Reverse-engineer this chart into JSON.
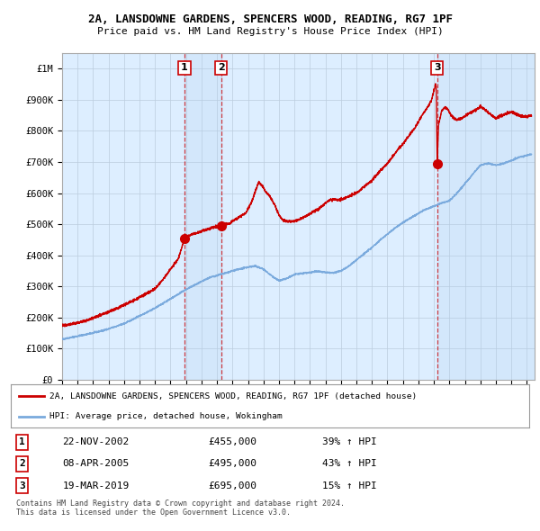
{
  "title": "2A, LANSDOWNE GARDENS, SPENCERS WOOD, READING, RG7 1PF",
  "subtitle": "Price paid vs. HM Land Registry's House Price Index (HPI)",
  "footer": "Contains HM Land Registry data © Crown copyright and database right 2024.\nThis data is licensed under the Open Government Licence v3.0.",
  "legend_line1": "2A, LANSDOWNE GARDENS, SPENCERS WOOD, READING, RG7 1PF (detached house)",
  "legend_line2": "HPI: Average price, detached house, Wokingham",
  "sales": [
    {
      "num": 1,
      "date": "22-NOV-2002",
      "price": 455000,
      "hpi_pct": "39%",
      "date_x": 2002.9
    },
    {
      "num": 2,
      "date": "08-APR-2005",
      "price": 495000,
      "hpi_pct": "43%",
      "date_x": 2005.27
    },
    {
      "num": 3,
      "date": "19-MAR-2019",
      "price": 695000,
      "hpi_pct": "15%",
      "date_x": 2019.21
    }
  ],
  "red_color": "#cc0000",
  "blue_color": "#7aaadd",
  "bg_color": "#ddeeff",
  "grid_color": "#bbccdd",
  "xlim": [
    1995,
    2025.5
  ],
  "ylim": [
    0,
    1050000
  ],
  "yticks": [
    0,
    100000,
    200000,
    300000,
    400000,
    500000,
    600000,
    700000,
    800000,
    900000,
    1000000
  ],
  "ytick_labels": [
    "£0",
    "£100K",
    "£200K",
    "£300K",
    "£400K",
    "£500K",
    "£600K",
    "£700K",
    "£800K",
    "£900K",
    "£1M"
  ],
  "xticks": [
    1995,
    1996,
    1997,
    1998,
    1999,
    2000,
    2001,
    2002,
    2003,
    2004,
    2005,
    2006,
    2007,
    2008,
    2009,
    2010,
    2011,
    2012,
    2013,
    2014,
    2015,
    2016,
    2017,
    2018,
    2019,
    2020,
    2021,
    2022,
    2023,
    2024,
    2025
  ],
  "hpi_anchors": [
    [
      1995.0,
      130000
    ],
    [
      1996.0,
      140000
    ],
    [
      1997.0,
      150000
    ],
    [
      1998.0,
      163000
    ],
    [
      1999.0,
      180000
    ],
    [
      2000.0,
      205000
    ],
    [
      2001.0,
      230000
    ],
    [
      2002.0,
      260000
    ],
    [
      2003.0,
      290000
    ],
    [
      2004.0,
      315000
    ],
    [
      2004.5,
      328000
    ],
    [
      2005.0,
      335000
    ],
    [
      2005.5,
      342000
    ],
    [
      2006.0,
      350000
    ],
    [
      2007.0,
      362000
    ],
    [
      2007.5,
      365000
    ],
    [
      2008.0,
      355000
    ],
    [
      2008.5,
      335000
    ],
    [
      2009.0,
      318000
    ],
    [
      2009.5,
      325000
    ],
    [
      2010.0,
      338000
    ],
    [
      2010.5,
      342000
    ],
    [
      2011.0,
      345000
    ],
    [
      2011.5,
      348000
    ],
    [
      2012.0,
      345000
    ],
    [
      2012.5,
      343000
    ],
    [
      2013.0,
      350000
    ],
    [
      2013.5,
      365000
    ],
    [
      2014.0,
      385000
    ],
    [
      2014.5,
      405000
    ],
    [
      2015.0,
      425000
    ],
    [
      2015.5,
      448000
    ],
    [
      2016.0,
      468000
    ],
    [
      2016.5,
      488000
    ],
    [
      2017.0,
      505000
    ],
    [
      2017.5,
      520000
    ],
    [
      2018.0,
      535000
    ],
    [
      2018.5,
      548000
    ],
    [
      2019.0,
      558000
    ],
    [
      2019.5,
      568000
    ],
    [
      2020.0,
      575000
    ],
    [
      2020.5,
      600000
    ],
    [
      2021.0,
      630000
    ],
    [
      2021.5,
      660000
    ],
    [
      2022.0,
      690000
    ],
    [
      2022.5,
      695000
    ],
    [
      2023.0,
      690000
    ],
    [
      2023.5,
      695000
    ],
    [
      2024.0,
      705000
    ],
    [
      2024.5,
      715000
    ],
    [
      2025.3,
      725000
    ]
  ],
  "price_anchors": [
    [
      1995.0,
      175000
    ],
    [
      1995.5,
      178000
    ],
    [
      1996.0,
      183000
    ],
    [
      1996.5,
      190000
    ],
    [
      1997.0,
      198000
    ],
    [
      1997.5,
      208000
    ],
    [
      1998.0,
      218000
    ],
    [
      1998.5,
      228000
    ],
    [
      1999.0,
      240000
    ],
    [
      1999.5,
      252000
    ],
    [
      2000.0,
      265000
    ],
    [
      2000.5,
      278000
    ],
    [
      2001.0,
      292000
    ],
    [
      2001.3,
      310000
    ],
    [
      2001.6,
      328000
    ],
    [
      2001.9,
      348000
    ],
    [
      2002.2,
      368000
    ],
    [
      2002.5,
      390000
    ],
    [
      2002.7,
      420000
    ],
    [
      2002.9,
      455000
    ],
    [
      2003.1,
      462000
    ],
    [
      2003.4,
      468000
    ],
    [
      2003.7,
      472000
    ],
    [
      2004.0,
      478000
    ],
    [
      2004.3,
      482000
    ],
    [
      2004.6,
      487000
    ],
    [
      2004.9,
      491000
    ],
    [
      2005.27,
      495000
    ],
    [
      2005.5,
      498000
    ],
    [
      2005.8,
      502000
    ],
    [
      2006.0,
      510000
    ],
    [
      2006.3,
      518000
    ],
    [
      2006.6,
      528000
    ],
    [
      2006.9,
      538000
    ],
    [
      2007.1,
      560000
    ],
    [
      2007.3,
      580000
    ],
    [
      2007.5,
      610000
    ],
    [
      2007.7,
      635000
    ],
    [
      2007.9,
      625000
    ],
    [
      2008.1,
      608000
    ],
    [
      2008.4,
      590000
    ],
    [
      2008.7,
      565000
    ],
    [
      2009.0,
      530000
    ],
    [
      2009.2,
      515000
    ],
    [
      2009.5,
      510000
    ],
    [
      2009.8,
      508000
    ],
    [
      2010.0,
      510000
    ],
    [
      2010.3,
      515000
    ],
    [
      2010.6,
      522000
    ],
    [
      2010.9,
      530000
    ],
    [
      2011.2,
      540000
    ],
    [
      2011.5,
      548000
    ],
    [
      2011.8,
      558000
    ],
    [
      2012.0,
      568000
    ],
    [
      2012.2,
      575000
    ],
    [
      2012.5,
      580000
    ],
    [
      2012.8,
      578000
    ],
    [
      2013.0,
      580000
    ],
    [
      2013.3,
      585000
    ],
    [
      2013.6,
      592000
    ],
    [
      2014.0,
      600000
    ],
    [
      2014.3,
      612000
    ],
    [
      2014.6,
      625000
    ],
    [
      2015.0,
      640000
    ],
    [
      2015.3,
      658000
    ],
    [
      2015.6,
      675000
    ],
    [
      2016.0,
      695000
    ],
    [
      2016.3,
      715000
    ],
    [
      2016.6,
      735000
    ],
    [
      2017.0,
      758000
    ],
    [
      2017.3,
      778000
    ],
    [
      2017.6,
      798000
    ],
    [
      2017.9,
      820000
    ],
    [
      2018.1,
      838000
    ],
    [
      2018.3,
      855000
    ],
    [
      2018.5,
      870000
    ],
    [
      2018.7,
      885000
    ],
    [
      2018.85,
      900000
    ],
    [
      2018.95,
      920000
    ],
    [
      2019.05,
      938000
    ],
    [
      2019.1,
      950000
    ],
    [
      2019.15,
      945000
    ],
    [
      2019.21,
      695000
    ],
    [
      2019.3,
      820000
    ],
    [
      2019.5,
      865000
    ],
    [
      2019.7,
      875000
    ],
    [
      2019.9,
      870000
    ],
    [
      2020.0,
      858000
    ],
    [
      2020.2,
      845000
    ],
    [
      2020.5,
      835000
    ],
    [
      2020.8,
      840000
    ],
    [
      2021.0,
      848000
    ],
    [
      2021.2,
      855000
    ],
    [
      2021.5,
      862000
    ],
    [
      2021.8,
      870000
    ],
    [
      2022.0,
      878000
    ],
    [
      2022.2,
      872000
    ],
    [
      2022.5,
      860000
    ],
    [
      2022.8,
      848000
    ],
    [
      2023.0,
      840000
    ],
    [
      2023.2,
      845000
    ],
    [
      2023.5,
      852000
    ],
    [
      2023.8,
      858000
    ],
    [
      2024.0,
      862000
    ],
    [
      2024.3,
      855000
    ],
    [
      2024.6,
      848000
    ],
    [
      2025.0,
      845000
    ],
    [
      2025.3,
      850000
    ]
  ]
}
